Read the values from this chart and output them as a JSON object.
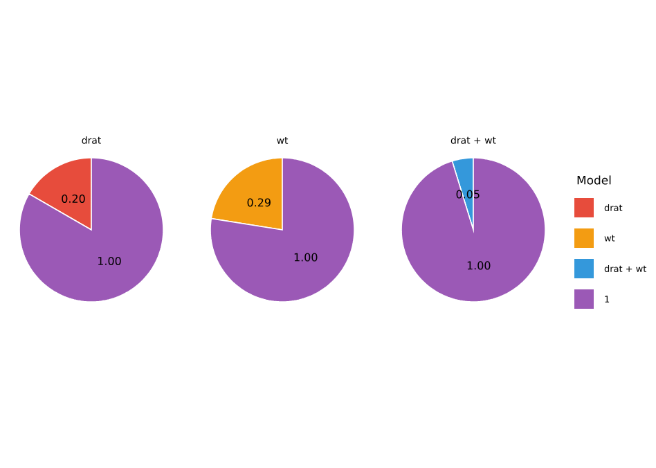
{
  "chart_data": [
    {
      "type": "pie",
      "title": "drat",
      "categories": [
        null,
        null
      ],
      "values": [
        0.2,
        1.0
      ],
      "colors": [
        "#e74c3c",
        "#9b59b6"
      ],
      "value_labels": [
        "0.20",
        "1.00"
      ]
    },
    {
      "type": "pie",
      "title": "wt",
      "categories": [
        null,
        null
      ],
      "values": [
        0.29,
        1.0
      ],
      "colors": [
        "#f39c12",
        "#9b59b6"
      ],
      "value_labels": [
        "0.29",
        "1.00"
      ]
    },
    {
      "type": "pie",
      "title": "drat + wt",
      "categories": [
        "drat",
        "wt",
        "drat + wt",
        "1"
      ],
      "values": [
        null,
        null,
        0.05,
        1.0
      ],
      "colors": [
        "#e74c3c",
        "#f39c12",
        "#3498db",
        "#9b59b6"
      ],
      "value_labels": [
        null,
        null,
        "0.05",
        "1.00"
      ],
      "legend": "right",
      "legend_title": "Model"
    }
  ]
}
